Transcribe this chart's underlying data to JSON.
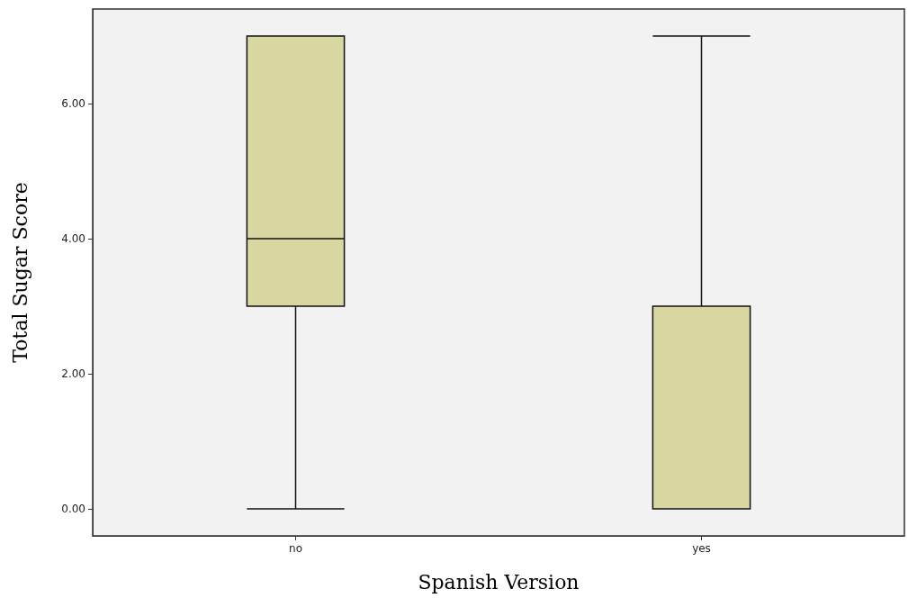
{
  "chart_data": {
    "type": "box",
    "xlabel": "Spanish Version",
    "ylabel": "Total Sugar Score",
    "categories": [
      "no",
      "yes"
    ],
    "boxes": [
      {
        "low": 0,
        "q1": 3,
        "median": 4,
        "q3": 7,
        "high": 7
      },
      {
        "low": 0,
        "q1": 0,
        "median": 0,
        "q3": 3,
        "high": 7
      }
    ],
    "color": "#d9d7a1",
    "ylim": [
      -0.4,
      7.4
    ],
    "yticks": [
      {
        "value": 0,
        "label": "0.00"
      },
      {
        "value": 2,
        "label": "2.00"
      },
      {
        "value": 4,
        "label": "4.00"
      },
      {
        "value": 6,
        "label": "6.00"
      }
    ],
    "grid": false
  }
}
